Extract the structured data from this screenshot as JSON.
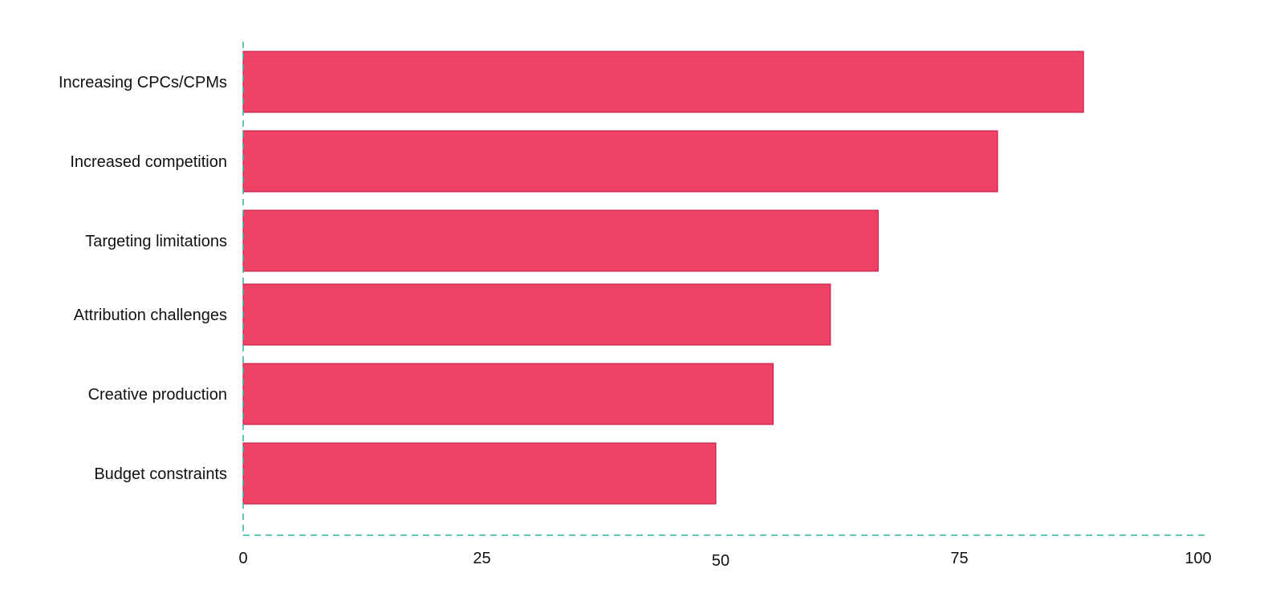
{
  "chart_data": {
    "type": "bar",
    "orientation": "horizontal",
    "categories": [
      "Increasing CPCs/CPMs",
      "Increased competition",
      "Targeting limitations",
      "Attribution challenges",
      "Creative production",
      "Budget constraints"
    ],
    "values": [
      88,
      79,
      66.5,
      61.5,
      55.5,
      49.5
    ],
    "title": "",
    "xlabel": "",
    "ylabel": "",
    "xlim": [
      0,
      100
    ],
    "xticks": [
      "0",
      "25",
      "50",
      "75",
      "100"
    ],
    "grid": false,
    "legend": "none",
    "colors": {
      "bar": "#EE4266",
      "bar_edge": "#C8103F",
      "axis": "#2BB39A",
      "text": "#111111"
    }
  }
}
